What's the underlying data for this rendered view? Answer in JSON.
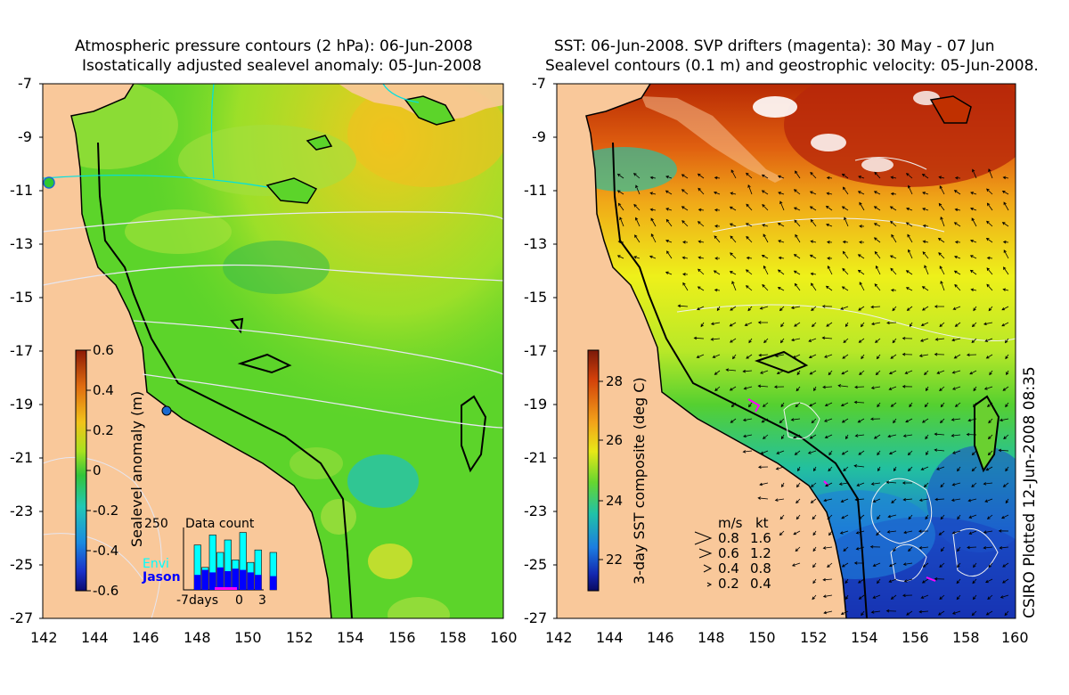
{
  "left_panel": {
    "title_line1": "Atmospheric pressure contours (2 hPa): 06-Jun-2008",
    "title_line2": "Isostatically adjusted sealevel anomaly: 05-Jun-2008",
    "colorbar": {
      "label": "Sealevel anomaly (m)",
      "ticks": [
        "0.6",
        "0.4",
        "0.2",
        "0",
        "-0.2",
        "-0.4",
        "-0.6"
      ],
      "range": [
        -0.6,
        0.6
      ]
    },
    "inset": {
      "title": "Data count",
      "ymax_label": "250",
      "series_envi": "Envi",
      "series_jason": "Jason",
      "xlabel_days": "-7days",
      "xlabel_zero": "0",
      "xlabel_three": "3",
      "envi_counts": [
        180,
        90,
        220,
        150,
        200,
        120,
        230,
        110,
        160,
        0,
        150
      ],
      "jason_counts": [
        60,
        80,
        70,
        90,
        75,
        85,
        80,
        70,
        60,
        0,
        55
      ],
      "colors": {
        "envi": "#00ffff",
        "jason": "#0000ff"
      }
    }
  },
  "right_panel": {
    "title_line1": "SST: 06-Jun-2008. SVP drifters (magenta): 30 May - 07 Jun",
    "title_line2": "Sealevel contours (0.1 m) and geostrophic velocity: 05-Jun-2008.",
    "colorbar": {
      "label": "3-day SST composite (deg C)",
      "ticks": [
        "28",
        "26",
        "24",
        "22"
      ],
      "range": [
        21,
        29
      ]
    },
    "velocity_legend": {
      "header_ms": "m/s",
      "header_kt": "kt",
      "rows": [
        {
          "ms": "0.8",
          "kt": "1.6"
        },
        {
          "ms": "0.6",
          "kt": "1.2"
        },
        {
          "ms": "0.4",
          "kt": "0.8"
        },
        {
          "ms": "0.2",
          "kt": "0.4"
        }
      ]
    }
  },
  "axes": {
    "y_ticks": [
      "-7",
      "-9",
      "-11",
      "-13",
      "-15",
      "-17",
      "-19",
      "-21",
      "-23",
      "-25",
      "-27"
    ],
    "x_ticks": [
      "142",
      "144",
      "146",
      "148",
      "150",
      "152",
      "154",
      "156",
      "158",
      "160"
    ],
    "lat_range": [
      -27,
      -7
    ],
    "lon_range": [
      142,
      160
    ]
  },
  "credit": "CSIRO Plotted 12-Jun-2008 08:35",
  "colors": {
    "land": "#f9c89a",
    "sla_green": "#5cd42a",
    "sst_yellow": "#e8f010",
    "sst_red": "#c03000",
    "sst_blue": "#1f6fdd"
  }
}
